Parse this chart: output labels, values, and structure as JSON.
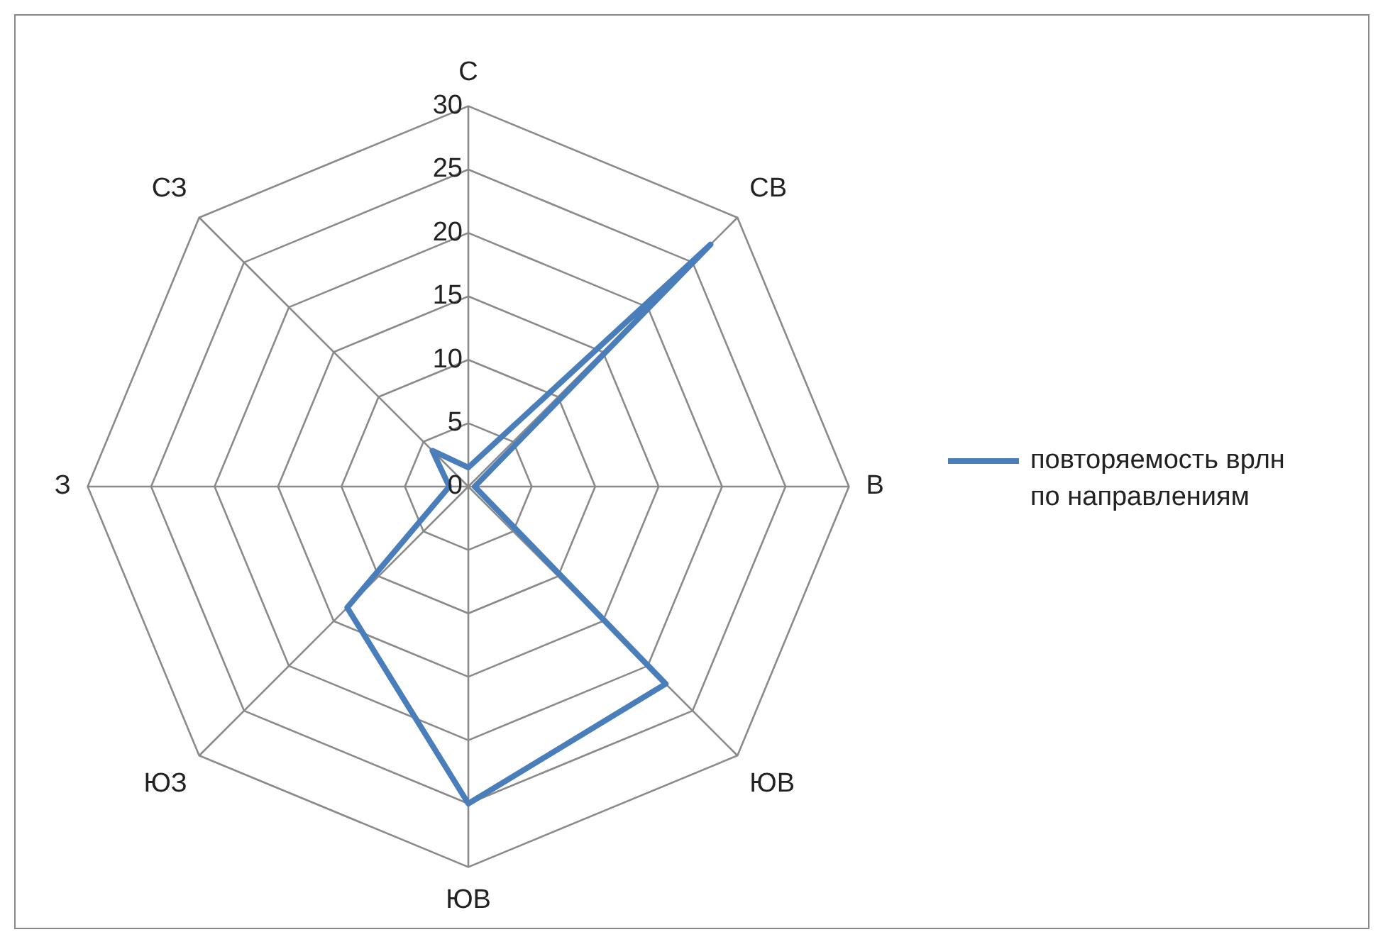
{
  "chart_data": {
    "type": "radar",
    "categories": [
      "С",
      "СВ",
      "В",
      "ЮВ",
      "ЮВ",
      "ЮЗ",
      "З",
      "СЗ"
    ],
    "series": [
      {
        "name": "повторяемость врлн по направлениям",
        "color": "#4a7ebb",
        "values": [
          1.5,
          27,
          0.5,
          22,
          25,
          13.5,
          1.5,
          4
        ]
      }
    ],
    "ylim": [
      0,
      30
    ],
    "yticks": [
      0,
      5,
      10,
      15,
      20,
      25,
      30
    ],
    "grid": true,
    "legend": "right",
    "marker": "none",
    "line_style": "solid"
  }
}
